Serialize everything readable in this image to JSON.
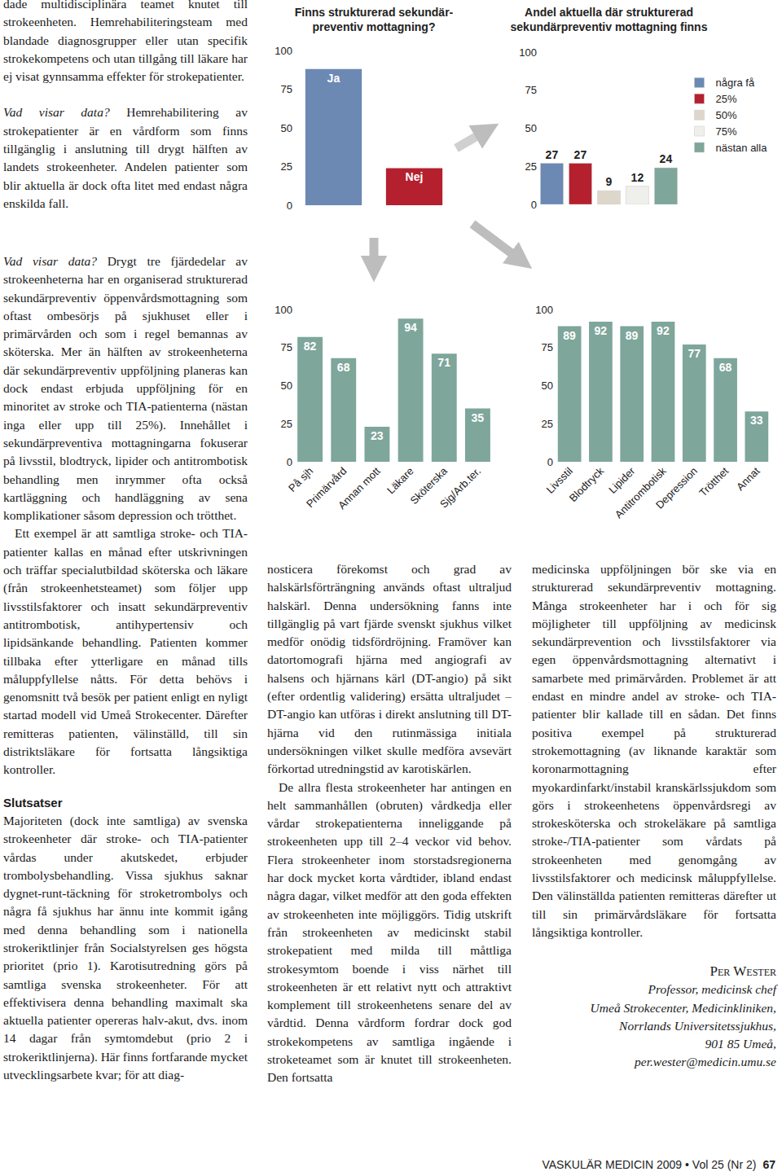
{
  "left_column_top": [
    {
      "text": "dade multidisciplinära teamet knutet till strokeenheten. Hemrehabiliteringsteam med blandade diagnosgrupper eller utan specifik strokekompetens och utan tillgång till läkare har ej visat gynnsamma effekter för strokepatienter."
    },
    {
      "lead": "Vad visar data?",
      "text": "Hemrehabilitering av strokepatienter är en vårdform som finns tillgänglig i anslutning till drygt hälften av landets strokeenheter. Andelen patienter som blir aktuella är dock ofta litet med endast några enskilda fall."
    }
  ],
  "left_column_bottom": [
    {
      "lead": "Vad visar data?",
      "text": "Drygt tre fjärdedelar av strokeenheterna har en organiserad strukturerad sekundärpreventiv öppenvårdsmottagning som oftast ombesörjs på sjukhuset eller i primärvården och som i regel bemannas av sköterska. Mer än hälften av strokeenheterna där sekundärpreventiv uppföljning planeras kan dock endast erbjuda uppföljning för en minoritet av stroke och TIA-patienterna (nästan inga eller upp till 25%). Innehållet i sekundärpreventiva mottagningarna fokuserar på livsstil, blodtryck, lipider och antitrombotisk behandling men inrymmer ofta också kartläggning och handläggning av sena komplikationer såsom depression och trötthet."
    },
    {
      "text": "Ett exempel är att samtliga stroke- och TIA-patienter kallas en månad efter utskrivningen och träffar specialutbildad sköterska och läkare (från strokeenhetsteamet) som följer upp livsstilsfaktorer och insatt sekundärpreventiv antitrombotisk, antihypertensiv och lipidsänkande behandling. Patienten kommer tillbaka efter ytterligare en månad tills måluppfyllelse nåtts. För detta behövs i genomsnitt två besök per patient enligt en nyligt startad modell vid Umeå Strokecenter. Därefter remitteras patienten, välinställd, till sin distriktsläkare för fortsatta långsiktiga kontroller."
    },
    {
      "heading": "Slutsatser"
    },
    {
      "text": "Majoriteten (dock inte samtliga) av svenska strokeenheter där stroke- och TIA-patienter vårdas under akutskedet, erbjuder trombolysbehandling. Vissa sjukhus saknar dygnet-runt-täckning för stroketrombolys och några få sjukhus har ännu inte kommit igång med denna behandling som i nationella strokeriktlinjer från Socialstyrelsen ges högsta prioritet (prio 1). Karotisutredning görs på samtliga svenska strokeenheter. För att effektivisera denna behandling maximalt ska aktuella patienter opereras halv-akut, dvs. inom 14 dagar från symtomdebut (prio 2 i strokeriktlinjerna). Här finns fortfarande mycket utvecklingsarbete kvar; för att diag-"
    }
  ],
  "middle_column": [
    {
      "text": "nosticera förekomst och grad av halskärlsförträngning används oftast ultraljud halskärl. Denna undersökning fanns inte tillgänglig på vart fjärde svenskt sjukhus vilket medför onödig tidsfördröjning. Framöver kan datortomografi hjärna med angiografi av halsens och hjärnans kärl (DT-angio) på sikt (efter ordentlig validering) ersätta ultraljudet – DT-angio kan utföras i direkt anslutning till DT-hjärna vid den rutinmässiga initiala undersökningen vilket skulle medföra avsevärt förkortad utredningstid av karotiskärlen."
    },
    {
      "text": "De allra flesta strokeenheter har antingen en helt sammanhållen (obruten) vårdkedja eller vårdar strokepatienterna inneliggande på strokeenheten upp till 2–4 veckor vid behov. Flera strokeenheter inom storstadsregionerna har dock mycket korta vårdtider, ibland endast några dagar, vilket medför att den goda effekten av strokeenheten inte möjliggörs. Tidig utskrift från strokeenheten av medicinskt stabil strokepatient med milda till måttliga strokesymtom boende i viss närhet till strokeenheten är ett relativt nytt och attraktivt komplement till strokeenhetens senare del av vårdtid. Denna vårdform fordrar dock god strokekompetens av samtliga ingående i stroketeamet som är knutet till strokeenheten. Den fortsatta"
    }
  ],
  "right_column": [
    {
      "text": "medicinska uppföljningen bör ske via en strukturerad sekundärpreventiv mottagning. Många strokeenheter har i och för sig möjligheter till uppföljning av medicinsk sekundärprevention och livsstilsfaktorer via egen öppenvårdsmottagning alternativt i samarbete med primärvården. Problemet är att endast en mindre andel av stroke- och TIA-patienter blir kallade till en sådan. Det finns positiva exempel på strukturerad strokemottagning (av liknande karaktär som koronarmottagning efter myokardinfarkt/instabil kranskärlssjukdom som görs i strokeenhetens öppenvårdsregi av strokesköterska och strokeläkare på samtliga stroke-/TIA-patienter som vårdats på strokeenheten med genomgång av livsstilsfaktorer och medicinsk måluppfyllelse. Den välinställda patienten remitteras därefter ut till sin primärvårdsläkare för fortsatta långsiktiga kontroller."
    }
  ],
  "signature": {
    "name": "Per Wester",
    "lines": [
      "Professor, medicinsk chef",
      "Umeå Strokecenter, Medicinkliniken,",
      "Norrlands Universitetssjukhus,",
      "901 85 Umeå,",
      "per.wester@medicin.umu.se"
    ]
  },
  "footer": {
    "journal": "VASKULÄR MEDICIN 2009 • Vol 25 (Nr 2)",
    "page": "67"
  },
  "chart_data": [
    {
      "type": "bar",
      "title": "Finns strukturerad sekundär-\npreventiv mottagning?",
      "categories": [
        "Ja",
        "Nej"
      ],
      "values": [
        88,
        24
      ],
      "colors": [
        "#6b89b3",
        "#b5202e"
      ],
      "ylim": [
        0,
        100
      ],
      "yticks": [
        0,
        25,
        50,
        75,
        100
      ],
      "grid": false,
      "tick_labels": "y"
    },
    {
      "type": "bar",
      "title": "Andel aktuella där strukturerad\nsekundärpreventiv mottagning finns",
      "categories": [
        "några få",
        "25%",
        "50%",
        "75%",
        "nästan alla"
      ],
      "values": [
        27,
        27,
        9,
        12,
        24
      ],
      "colors": [
        "#6b89b3",
        "#b5202e",
        "#ddd6ca",
        "#efefec",
        "#7ea69b"
      ],
      "ylim": [
        0,
        100
      ],
      "yticks": [
        0,
        25,
        50,
        75,
        100
      ],
      "grid": false,
      "legend": "right",
      "data_labels": true,
      "tick_labels": "y"
    },
    {
      "type": "bar",
      "categories": [
        "På sjh",
        "Primärvård",
        "Annan mott",
        "Läkare",
        "Sköterska",
        "Sjg/Arb.ter."
      ],
      "values": [
        82,
        68,
        23,
        94,
        71,
        35
      ],
      "color": "#7ea69b",
      "ylim": [
        0,
        100
      ],
      "yticks": [
        0,
        25,
        50,
        75,
        100
      ],
      "grid": false,
      "data_labels": true
    },
    {
      "type": "bar",
      "categories": [
        "Livsstil",
        "Blodtryck",
        "Lipider",
        "Antitrombotisk",
        "Depression",
        "Trötthet",
        "Annat"
      ],
      "values": [
        89,
        92,
        89,
        92,
        77,
        68,
        33
      ],
      "color": "#7ea69b",
      "ylim": [
        0,
        100
      ],
      "yticks": [
        0,
        25,
        50,
        75,
        100
      ],
      "grid": false,
      "data_labels": true
    }
  ]
}
